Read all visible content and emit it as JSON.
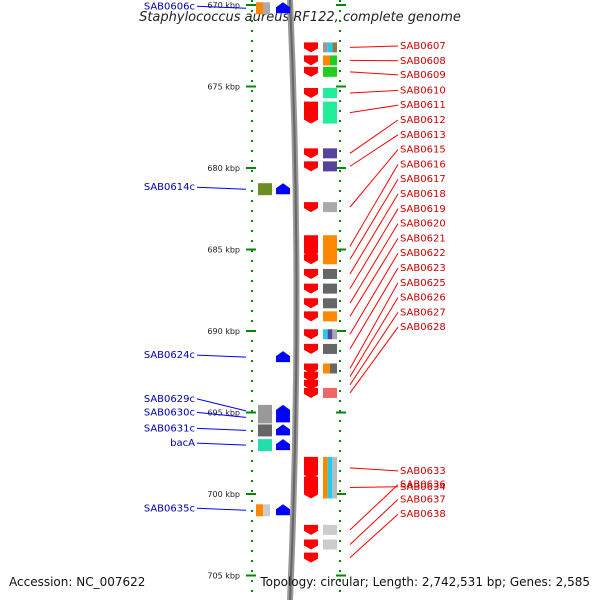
{
  "title": "Staphylococcus aureus RF122, complete genome",
  "footer": {
    "accession": "Accession: NC_007622",
    "summary": "Topology: circular; Length: 2,742,531 bp; Genes: 2,585"
  },
  "colors": {
    "forward_gene": "#ff0000",
    "reverse_gene": "#0000ff",
    "ruler_dash": "#008800",
    "forward_label": "#cc0000",
    "reverse_label": "#0000aa"
  },
  "ruler": {
    "start_kbp": 670,
    "end_kbp": 705,
    "step_kbp": 5,
    "ticks": [
      "670 kbp",
      "675 kbp",
      "680 kbp",
      "685 kbp",
      "690 kbp",
      "695 kbp",
      "700 kbp",
      "705 kbp"
    ]
  },
  "reverse_genes": [
    {
      "name": "SAB0606c",
      "kbp": 670.2,
      "cog": [
        "#ff8800",
        "#aaaaaa"
      ]
    },
    {
      "name": "SAB0614c",
      "kbp": 681.3,
      "cog": [
        "#6b8e23"
      ]
    },
    {
      "name": "SAB0624c",
      "kbp": 691.6,
      "cog": []
    },
    {
      "name": "SAB0629c",
      "kbp": 694.9,
      "cog": [
        "#999999"
      ]
    },
    {
      "name": "SAB0630c",
      "kbp": 695.3,
      "cog": [
        "#999999"
      ]
    },
    {
      "name": "SAB0631c",
      "kbp": 696.1,
      "cog": [
        "#666666"
      ]
    },
    {
      "name": "bacA",
      "kbp": 697.0,
      "cog": [
        "#22ddaa"
      ]
    },
    {
      "name": "SAB0635c",
      "kbp": 701.0,
      "cog": [
        "#ff8800",
        "#cccccc"
      ]
    }
  ],
  "forward_genes": [
    {
      "name": "SAB0607",
      "kbp": 672.6,
      "cog": [
        "#999999",
        "#22ccee",
        "#8b7d3a"
      ]
    },
    {
      "name": "SAB0608",
      "kbp": 673.4,
      "cog": [
        "#ff8800",
        "#22cc22"
      ]
    },
    {
      "name": "SAB0609",
      "kbp": 674.1,
      "cog": [
        "#22cc22"
      ]
    },
    {
      "name": "SAB0610",
      "kbp": 675.4,
      "cog": [
        "#22ee99"
      ]
    },
    {
      "name": "SAB0611",
      "kbp": 676.6,
      "cog": [
        "#22ee99"
      ]
    },
    {
      "name": "SAB0612",
      "kbp": 679.1,
      "cog": [
        "#554499"
      ]
    },
    {
      "name": "SAB0613",
      "kbp": 679.9,
      "cog": [
        "#554499"
      ]
    },
    {
      "name": "SAB0615",
      "kbp": 682.4,
      "cog": [
        "#aaaaaa"
      ]
    },
    {
      "name": "SAB0616",
      "kbp": 684.8,
      "cog": [
        "#ff8800"
      ]
    },
    {
      "name": "SAB0617",
      "kbp": 685.6,
      "cog": [
        "#ff8800"
      ]
    },
    {
      "name": "SAB0618",
      "kbp": 686.5,
      "cog": [
        "#666666"
      ]
    },
    {
      "name": "SAB0619",
      "kbp": 687.4,
      "cog": [
        "#666666"
      ]
    },
    {
      "name": "SAB0620",
      "kbp": 688.3,
      "cog": [
        "#666666"
      ]
    },
    {
      "name": "SAB0621",
      "kbp": 689.1,
      "cog": [
        "#ff8800"
      ]
    },
    {
      "name": "SAB0622",
      "kbp": 690.2,
      "cog": [
        "#22ccee",
        "#554499",
        "#aaaaaa"
      ]
    },
    {
      "name": "SAB0623",
      "kbp": 691.1,
      "cog": [
        "#666666"
      ]
    },
    {
      "name": "SAB0625",
      "kbp": 692.3,
      "cog": [
        "#ff8800",
        "#666666"
      ]
    },
    {
      "name": "SAB0626",
      "kbp": 692.8,
      "cog": []
    },
    {
      "name": "SAB0627",
      "kbp": 693.3,
      "cog": []
    },
    {
      "name": "SAB0628",
      "kbp": 693.8,
      "cog": [
        "#ee6666"
      ]
    },
    {
      "name": "SAB0633",
      "kbp": 698.4,
      "cog": [
        "#ff8800",
        "#22ccee",
        "#bbbbbb"
      ]
    },
    {
      "name": "SAB0634",
      "kbp": 699.6,
      "cog": [
        "#ff8800",
        "#22ccee",
        "#bbbbbb"
      ]
    },
    {
      "name": "SAB0636",
      "kbp": 702.2,
      "cog": [
        "#cccccc"
      ]
    },
    {
      "name": "SAB0637",
      "kbp": 703.1,
      "cog": [
        "#cccccc"
      ]
    },
    {
      "name": "SAB0638",
      "kbp": 703.9,
      "cog": []
    }
  ]
}
